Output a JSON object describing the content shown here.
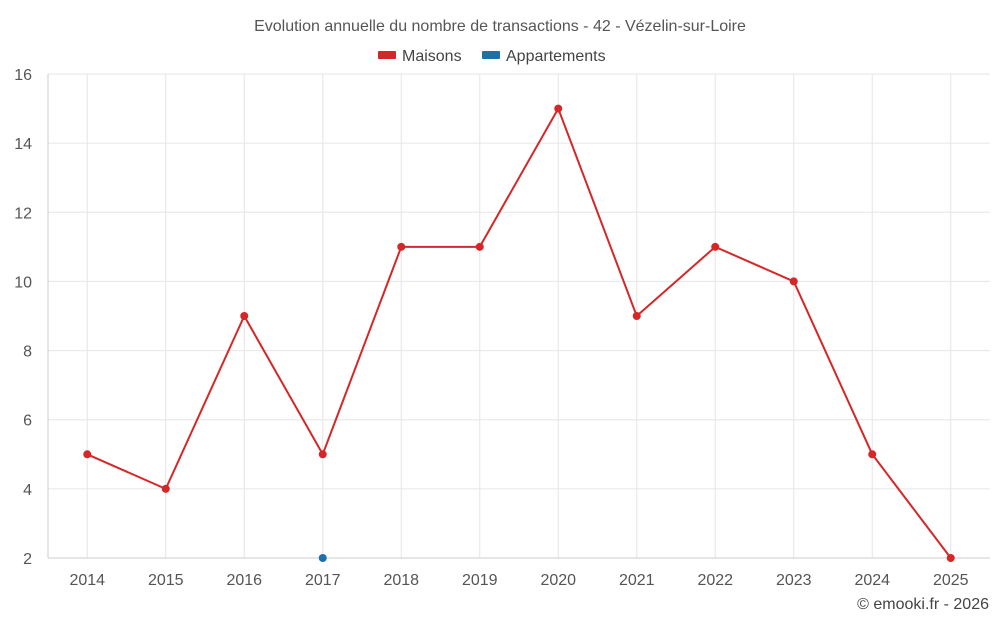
{
  "chart_data": {
    "type": "line",
    "title": "Evolution annuelle du nombre de transactions - 42 - Vézelin-sur-Loire",
    "categories": [
      "2014",
      "2015",
      "2016",
      "2017",
      "2018",
      "2019",
      "2020",
      "2021",
      "2022",
      "2023",
      "2024",
      "2025"
    ],
    "ylim": [
      2,
      16
    ],
    "yticks": [
      "2",
      "4",
      "6",
      "8",
      "10",
      "12",
      "14",
      "16"
    ],
    "grid": true,
    "legend_position": "top-center",
    "series": [
      {
        "name": "Maisons",
        "color": "#d62728",
        "values": [
          5,
          4,
          9,
          5,
          11,
          11,
          15,
          9,
          11,
          10,
          5,
          2
        ]
      },
      {
        "name": "Appartements",
        "color": "#1f6fa8",
        "values": [
          null,
          null,
          null,
          2,
          null,
          null,
          null,
          null,
          null,
          null,
          null,
          null
        ]
      }
    ],
    "credit": "© emooki.fr - 2026"
  }
}
